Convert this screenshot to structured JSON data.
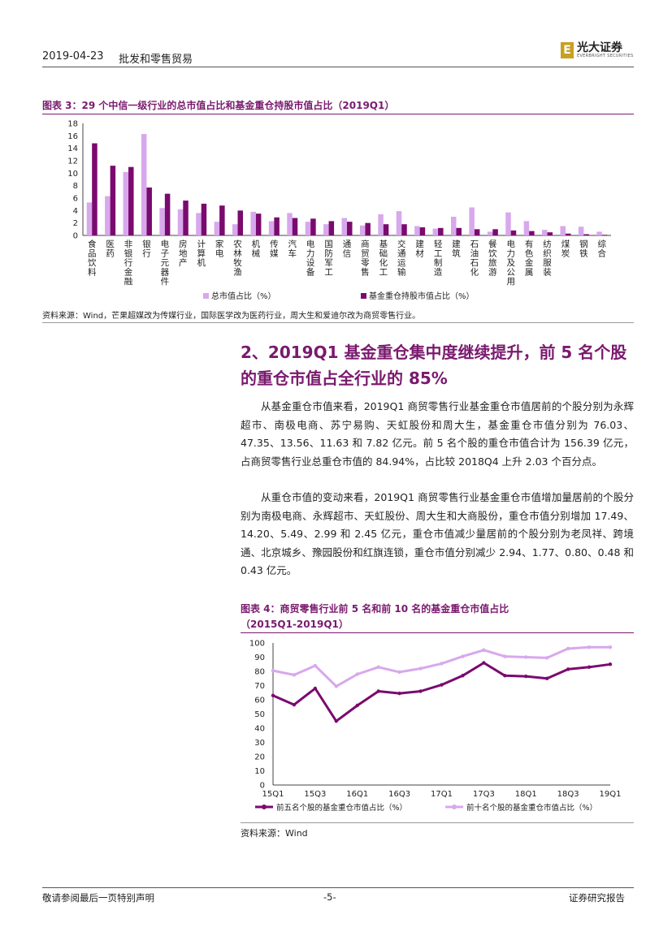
{
  "header": {
    "date": "2019-04-23",
    "title": "批发和零售贸易",
    "logo_cn": "光大证券",
    "logo_en": "EVERBRIGHT SECURITIES",
    "logo_mark": "E"
  },
  "figure3": {
    "title": "图表 3：29 个中信一级行业的总市值占比和基金重仓持股市值占比（2019Q1）",
    "source": "资料来源：Wind，芒果超媒改为传媒行业，国际医学改为医药行业，周大生和爱迪尔改为商贸零售行业。"
  },
  "section": {
    "title": "2、2019Q1 基金重仓集中度继续提升，前 5 名个股的重仓市值占全行业的 85%"
  },
  "paragraphs": [
    "从基金重仓市值来看，2019Q1 商贸零售行业基金重仓市值居前的个股分别为永辉超市、南极电商、苏宁易购、天虹股份和周大生，基金重仓市值分别为 76.03、47.35、13.56、11.63 和 7.82 亿元。前 5 名个股的重仓市值合计为 156.39 亿元，占商贸零售行业总重仓市值的 84.94%，占比较 2018Q4 上升 2.03 个百分点。",
    "从重仓市值的变动来看，2019Q1 商贸零售行业基金重仓市值增加量居前的个股分别为南极电商、永辉超市、天虹股份、周大生和大商股份，重仓市值分别增加 17.49、14.20、5.49、2.99 和 2.45 亿元，重仓市值减少量居前的个股分别为老凤祥、跨境通、北京城乡、豫园股份和红旗连锁，重仓市值分别减少 2.94、1.77、0.80、0.48 和 0.43 亿元。"
  ],
  "figure4": {
    "title_line1": "图表 4：商贸零售行业前 5 名和前 10 名的基金重仓市值占比",
    "title_line2": "（2015Q1-2019Q1）",
    "source": "资料来源：Wind"
  },
  "footer": {
    "left": "敬请参阅最后一页特别声明",
    "center": "-5-",
    "right": "证券研究报告"
  },
  "colors": {
    "accent": "#7a1a6e",
    "series_light": "#d8a8ec",
    "series_dark": "#7a0a6e"
  },
  "chart_data": [
    {
      "type": "bar",
      "title": "图表 3：29 个中信一级行业的总市值占比和基金重仓持股市值占比（2019Q1）",
      "categories": [
        "食品饮料",
        "医药",
        "非银行金融",
        "银行",
        "电子元器件",
        "房地产",
        "计算机",
        "家电",
        "农林牧渔",
        "机械",
        "传媒",
        "汽车",
        "电力设备",
        "国防军工",
        "通信",
        "商贸零售",
        "基础化工",
        "交通运输",
        "建材",
        "轻工制造",
        "建筑",
        "石油石化",
        "餐饮旅游",
        "电力及公用",
        "有色金属",
        "纺织服装",
        "煤炭",
        "钢铁",
        "综合"
      ],
      "series": [
        {
          "name": "总市值占比（%）",
          "color": "#d8a8ec",
          "values": [
            5.3,
            6.3,
            10.2,
            16.3,
            4.4,
            4.2,
            3.6,
            2.2,
            1.8,
            3.8,
            2.3,
            3.6,
            2.2,
            1.8,
            2.8,
            1.6,
            3.4,
            3.9,
            1.5,
            1.1,
            3.0,
            4.5,
            0.6,
            3.7,
            2.3,
            0.9,
            1.5,
            1.4,
            0.6
          ]
        },
        {
          "name": "基金重仓持股市值占比（%）",
          "color": "#7a0a6e",
          "values": [
            14.8,
            11.2,
            11.0,
            7.7,
            6.7,
            5.6,
            5.1,
            4.8,
            4.0,
            3.5,
            2.9,
            2.8,
            2.7,
            2.3,
            2.2,
            2.0,
            1.8,
            1.8,
            1.3,
            1.2,
            1.2,
            1.0,
            1.0,
            0.8,
            0.7,
            0.5,
            0.3,
            0.2,
            0.1
          ]
        }
      ],
      "ylim": [
        0,
        18
      ],
      "yticks": [
        0,
        2,
        4,
        6,
        8,
        10,
        12,
        14,
        16,
        18
      ]
    },
    {
      "type": "line",
      "title": "图表 4：商贸零售行业前 5 名和前 10 名的基金重仓市值占比（2015Q1-2019Q1）",
      "x": [
        "15Q1",
        "15Q2",
        "15Q3",
        "15Q4",
        "16Q1",
        "16Q2",
        "16Q3",
        "16Q4",
        "17Q1",
        "17Q2",
        "17Q3",
        "17Q4",
        "18Q1",
        "18Q2",
        "18Q3",
        "18Q4",
        "19Q1"
      ],
      "xticks": [
        "15Q1",
        "15Q3",
        "16Q1",
        "16Q3",
        "17Q1",
        "17Q3",
        "18Q1",
        "18Q3",
        "19Q1"
      ],
      "series": [
        {
          "name": "前五名个股的基金重仓市值占比（%）",
          "color": "#7a0a6e",
          "values": [
            63,
            56.5,
            68,
            45,
            56,
            66,
            64.5,
            66,
            70.5,
            77,
            86,
            77,
            76.5,
            75,
            81.5,
            83,
            85
          ]
        },
        {
          "name": "前十名个股的基金重仓市值占比（%）",
          "color": "#d8a8ec",
          "values": [
            80.5,
            77.5,
            84,
            69.5,
            78,
            83,
            79.5,
            82,
            85.5,
            90.5,
            95,
            90.5,
            90,
            89.5,
            96,
            97,
            97
          ]
        }
      ],
      "ylim": [
        0,
        100
      ],
      "yticks": [
        0,
        10,
        20,
        30,
        40,
        50,
        60,
        70,
        80,
        90,
        100
      ]
    }
  ]
}
